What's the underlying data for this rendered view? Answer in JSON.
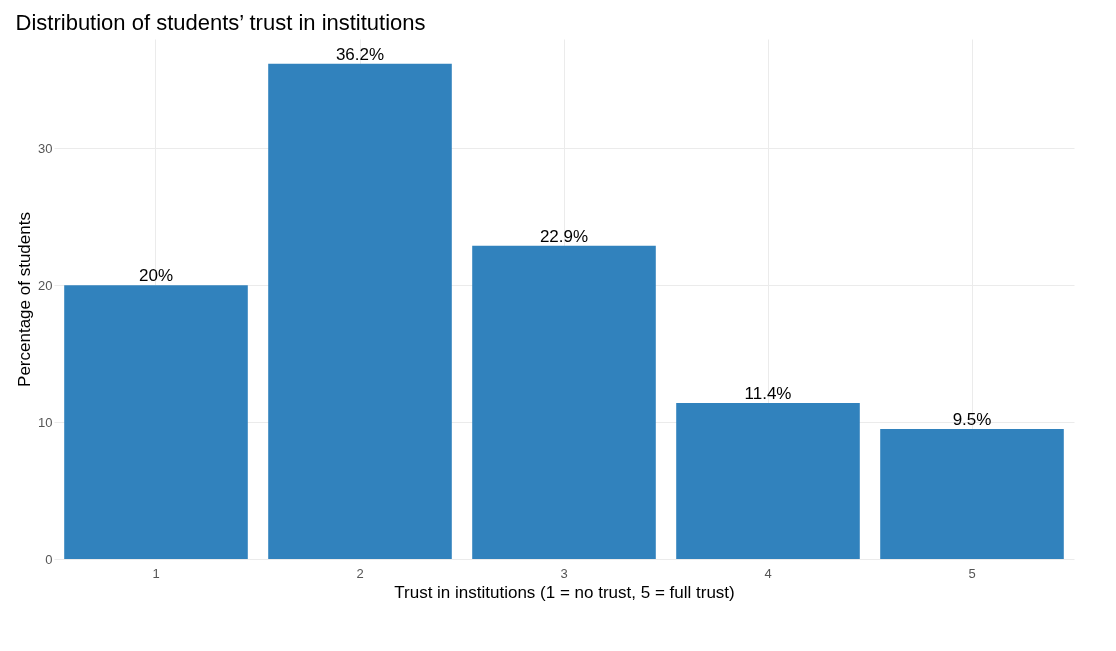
{
  "chart_data": {
    "type": "bar",
    "title": "Distribution of students’ trust in institutions",
    "xlabel": "Trust in institutions (1 = no trust, 5 = full trust)",
    "ylabel": "Percentage of students",
    "categories": [
      "1",
      "2",
      "3",
      "4",
      "5"
    ],
    "values": [
      20,
      36.2,
      22.9,
      11.4,
      9.5
    ],
    "value_labels": [
      "20%",
      "36.2%",
      "22.9%",
      "11.4%",
      "9.5%"
    ],
    "color": "#3182bd",
    "ylim": [
      0,
      38
    ],
    "yticks": [
      0,
      10,
      20,
      30
    ],
    "grid": true
  }
}
